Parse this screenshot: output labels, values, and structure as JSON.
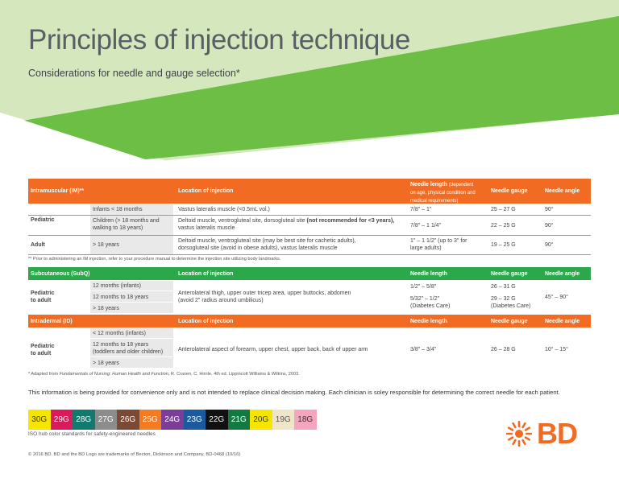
{
  "title": "Principles of injection technique",
  "subtitle": "Considerations for needle and gauge selection*",
  "im": {
    "header": {
      "section": "Intramuscular (IM)**",
      "location": "Location of injection",
      "needle_length": "Needle length",
      "needle_length_note1": "(dependent",
      "needle_length_note2": "on age, physical condition and",
      "needle_length_note3": "medical requirements)",
      "gauge": "Needle gauge",
      "angle": "Needle angle"
    },
    "pediatric_label": "Pediatric",
    "rows": [
      {
        "group": "Infants < 18 months",
        "location": "Vastus lateralis muscle (<0.5mL vol.)",
        "length": "7/8\" – 1\"",
        "gauge": "25 – 27 G",
        "angle": "90°"
      },
      {
        "group1": "Children (> 18 months and",
        "group2": "walking to 18 years)",
        "location_a": "Deltoid muscle, ventrogluteal site, dorsogluteal site ",
        "location_b": "(not recommended for <3 years),",
        "location_c": "vastus lateralis muscle",
        "length": "7/8\" – 1 1/4\"",
        "gauge": "22 – 25 G",
        "angle": "90°"
      }
    ],
    "adult": {
      "label": "Adult",
      "group": "> 18 years",
      "location1": "Deltoid muscle, ventrogluteal site (may be best site for cachetic adults),",
      "location2": "dorsogluteal site (avoid in obese adults), vastus lateralis muscle",
      "length1": "1\" – 1 1/2\" (up to 3\" for",
      "length2": "large adults)",
      "gauge": "19 – 25 G",
      "angle": "90°"
    },
    "note": "** Prior to administering an IM injection, refer to your procedure manual to determine the injection site utilizing body landmarks."
  },
  "subq": {
    "header": {
      "section": "Subcutaneous (SubQ)",
      "location": "Location of injection",
      "needle_length": "Needle length",
      "gauge": "Needle gauge",
      "angle": "Needle angle"
    },
    "label1": "Pediatric",
    "label2": "to adult",
    "groups": [
      "12 months (infants)",
      "12 months to 18 years",
      "> 18 years"
    ],
    "location1": "Anterolateral thigh, upper outer tricep area, upper buttocks, abdomen",
    "location2": "(avoid 2\" radius around umbilicus)",
    "length1": "1/2\" – 5/8\"",
    "length2": "5/32\" – 1/2\"",
    "length3": "(Diabetes Care)",
    "gauge1": "26 – 31 G",
    "gauge2": "29 – 32 G",
    "gauge3": "(Diabetes Care)",
    "angle": "45° – 90°"
  },
  "id": {
    "header": {
      "section": "Intradermal (ID)",
      "location": "Location of injection",
      "needle_length": "Needle length",
      "gauge": "Needle gauge",
      "angle": "Needle angle"
    },
    "label1": "Pediatric",
    "label2": "to adult",
    "group1": "< 12 months (infants)",
    "group2a": "12 months to 18 years",
    "group2b": "(toddlers and older children)",
    "group3": "> 18 years",
    "location": "Anterolateral aspect of forearm, upper chest, upper back, back of upper arm",
    "length": "3/8\" – 3/4\"",
    "gauge": "26 – 28 G",
    "angle": "10° – 15°"
  },
  "footnote_a": "* Adapted from ",
  "footnote_b": "Fundamentals of Nursing: Human Health and Function",
  "footnote_c": ", R. Craven, C. Hirnle, 4th ed. Lippincott Williams & Wilkins, 2003.",
  "disclaimer": "This information is being provided for convenience only and is not intended to replace clinical decision making. Each clinician is soley responsible for determining the correct needle for each patient.",
  "swatches": [
    {
      "label": "30G",
      "color": "#f6e500",
      "text": "#333333"
    },
    {
      "label": "29G",
      "color": "#d81b5a",
      "text": "#ffffff"
    },
    {
      "label": "28G",
      "color": "#117a6c",
      "text": "#ffffff"
    },
    {
      "label": "27G",
      "color": "#8c8c8c",
      "text": "#ffffff"
    },
    {
      "label": "26G",
      "color": "#7a4a35",
      "text": "#ffffff"
    },
    {
      "label": "25G",
      "color": "#f47b20",
      "text": "#ffffff"
    },
    {
      "label": "24G",
      "color": "#7a3e96",
      "text": "#ffffff"
    },
    {
      "label": "23G",
      "color": "#1c5a9e",
      "text": "#ffffff"
    },
    {
      "label": "22G",
      "color": "#111111",
      "text": "#ffffff"
    },
    {
      "label": "21G",
      "color": "#127a40",
      "text": "#ffffff"
    },
    {
      "label": "20G",
      "color": "#f6e500",
      "text": "#333333"
    },
    {
      "label": "19G",
      "color": "#efe5c8",
      "text": "#555555"
    },
    {
      "label": "18G",
      "color": "#f6a5be",
      "text": "#333333"
    }
  ],
  "iso_note": "ISO hub color standards for safety-engineered needles",
  "copyright": "© 2016 BD. BD and the BD Logo are trademarks of Becton, Dickinson and Company. BD-0468 (10/16)",
  "logo_text": "BD",
  "colors": {
    "orange": "#f26b23",
    "green": "#2aa84a",
    "light_green": "#d7e9b8",
    "mid_green": "#6cbe45"
  }
}
